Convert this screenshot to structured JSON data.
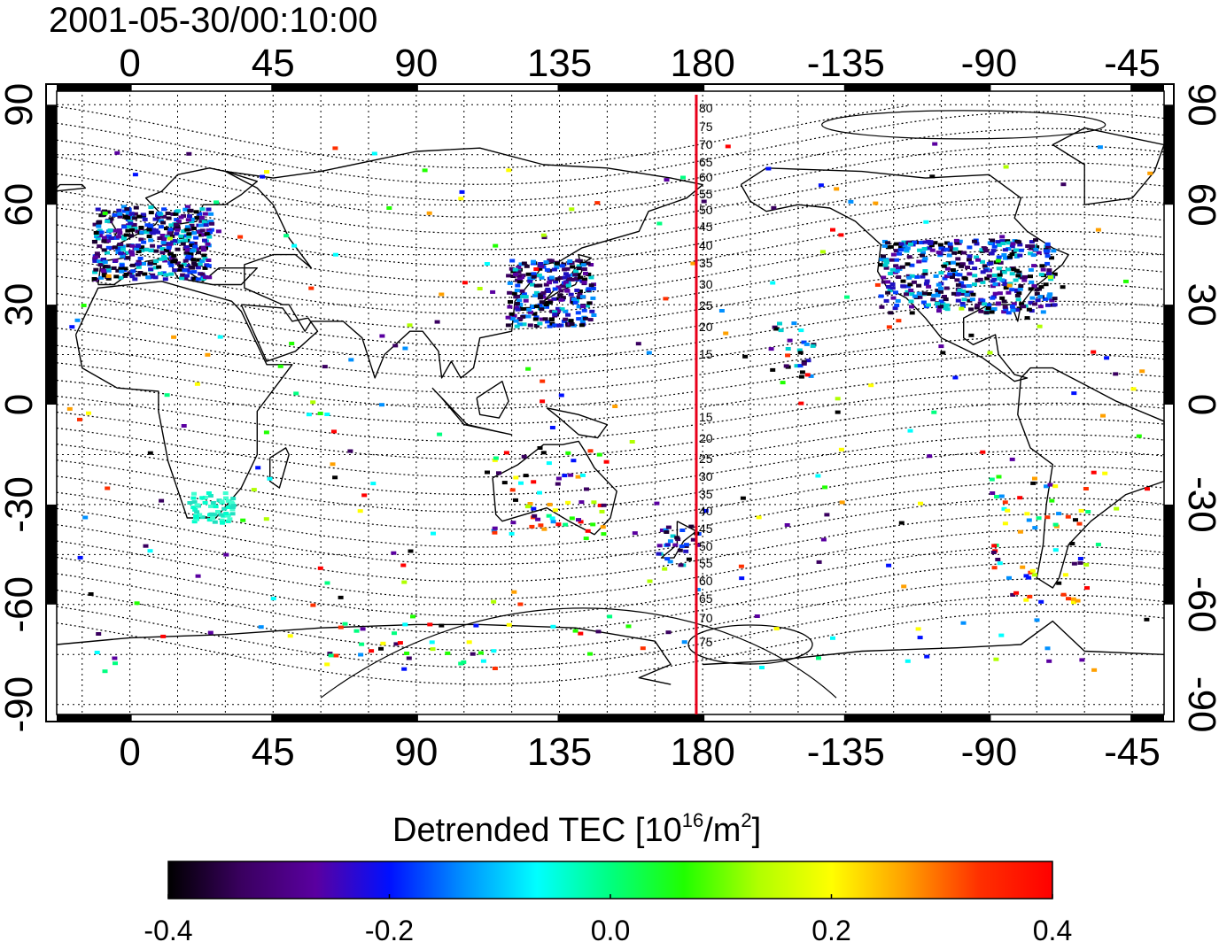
{
  "title": "2001-05-30/00:10:00",
  "map": {
    "lon_ticks": [
      "0",
      "45",
      "90",
      "135",
      "180",
      "-135",
      "-90",
      "-45"
    ],
    "lon_tick_values": [
      0,
      45,
      90,
      135,
      180,
      225,
      270,
      315
    ],
    "lat_ticks_left": [
      "90",
      "60",
      "30",
      "0",
      "-30",
      "-60",
      "-90"
    ],
    "lat_ticks_right": [
      "90",
      "60",
      "30",
      "0",
      "-30",
      "-60",
      "-90"
    ],
    "lat_tick_values": [
      90,
      60,
      30,
      0,
      -30,
      -60,
      -90
    ],
    "lon_range": [
      -23,
      325
    ],
    "lat_range": [
      -93,
      93
    ],
    "meridian_line_lon": 178,
    "meridian_line_color": "#e8001a",
    "maglat_labels_north": [
      "80",
      "75",
      "70",
      "65",
      "60",
      "55",
      "50",
      "45",
      "40",
      "35",
      "30",
      "25",
      "20",
      "15"
    ],
    "maglat_labels_south": [
      "15",
      "20",
      "25",
      "30",
      "35",
      "40",
      "45",
      "50",
      "55",
      "60",
      "65",
      "70",
      "75"
    ]
  },
  "colorbar": {
    "title_main": "Detrended TEC  [10",
    "title_exp": "16",
    "title_unit": "/m",
    "title_exp2": "2",
    "title_close": "]",
    "tick_labels": [
      "-0.4",
      "-0.2",
      "0.0",
      "0.2",
      "0.4"
    ],
    "tick_values": [
      -0.4,
      -0.2,
      0.0,
      0.2,
      0.4
    ],
    "range": [
      -0.4,
      0.4
    ],
    "colors": [
      "#000000",
      "#3a0060",
      "#5a00a0",
      "#0010ff",
      "#0090ff",
      "#00ffff",
      "#00ff80",
      "#20ff00",
      "#b0ff00",
      "#ffff00",
      "#ffa000",
      "#ff3000",
      "#ff0000"
    ]
  }
}
